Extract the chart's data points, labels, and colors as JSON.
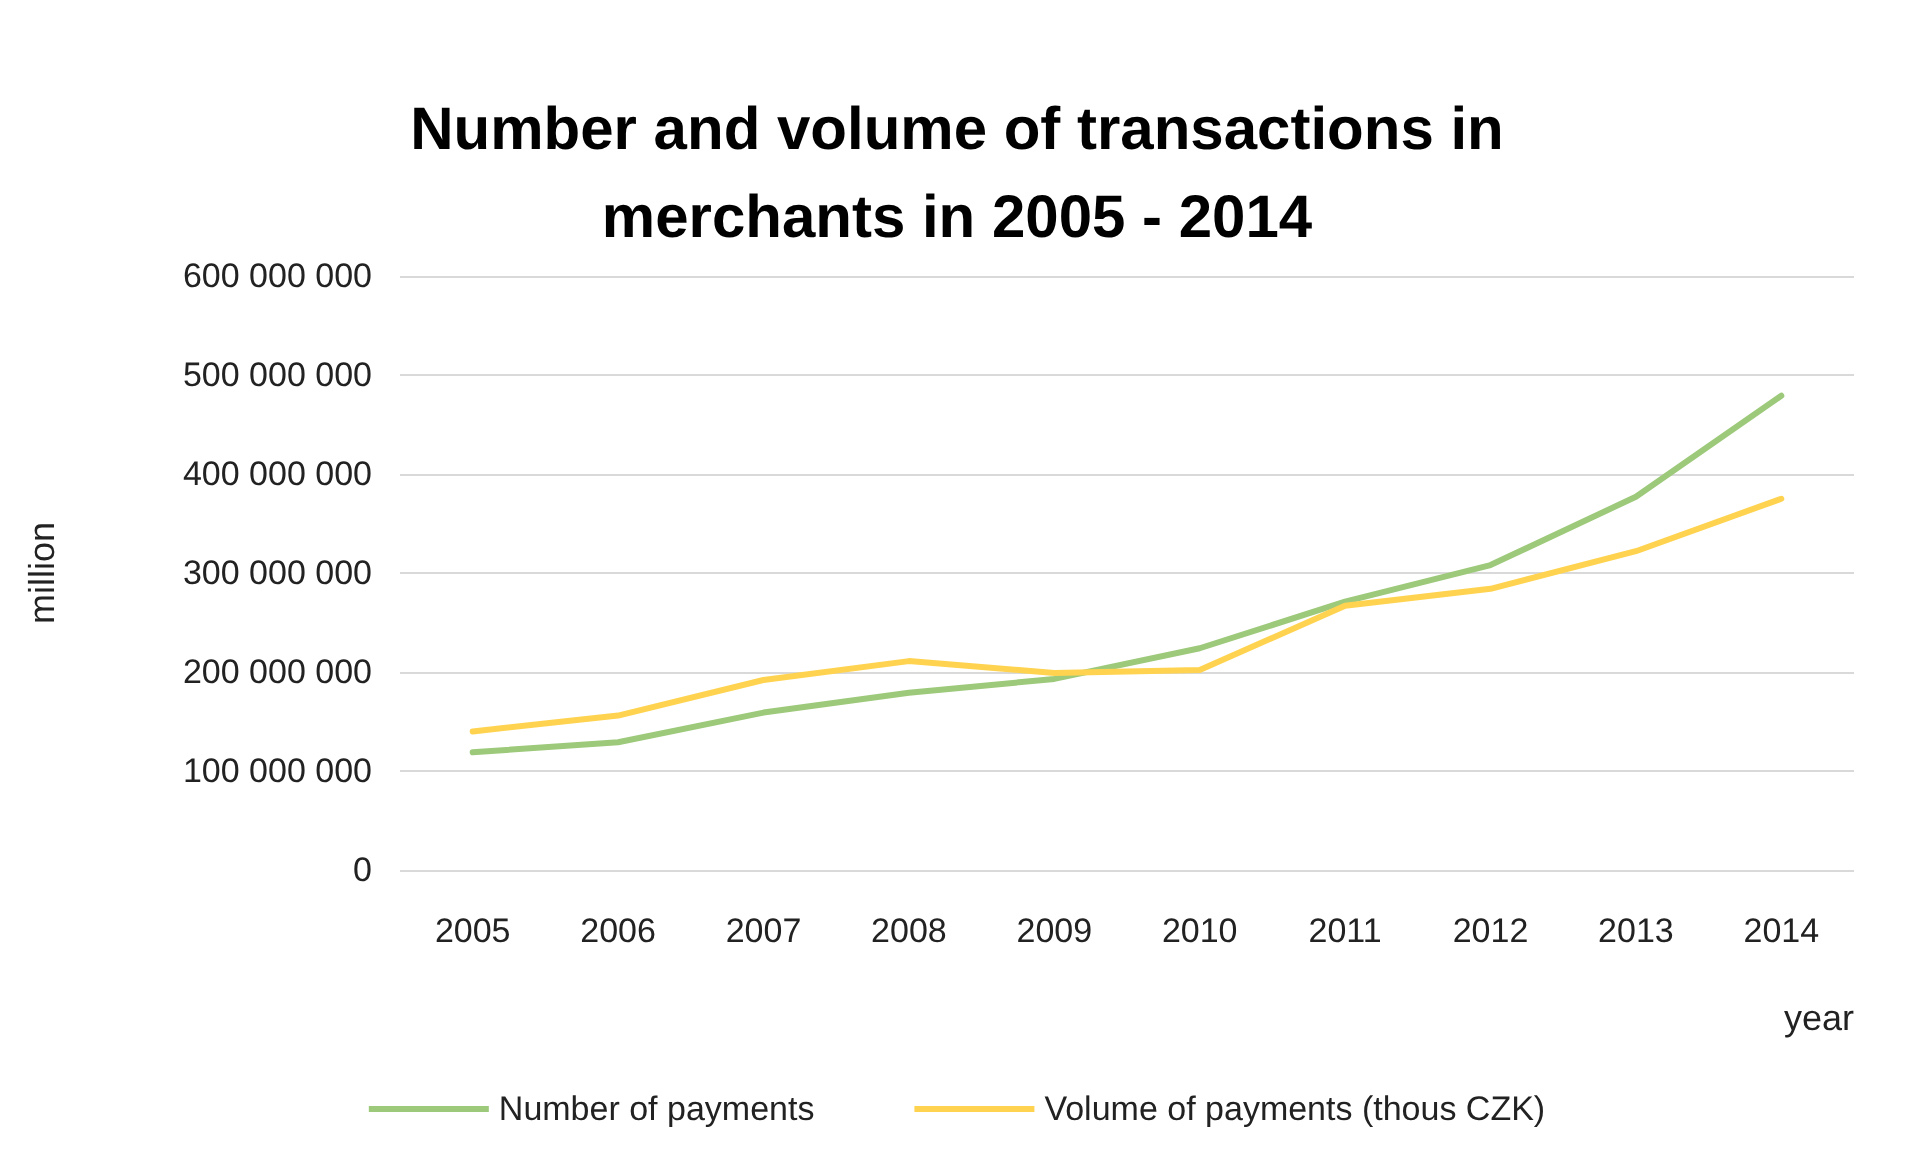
{
  "chart_data": {
    "type": "line",
    "title": "Number and volume of transactions in\nmerchants in 2005 - 2014",
    "xlabel": "year",
    "ylabel": "million",
    "categories": [
      "2005",
      "2006",
      "2007",
      "2008",
      "2009",
      "2010",
      "2011",
      "2012",
      "2013",
      "2014"
    ],
    "series": [
      {
        "name": "Number of payments",
        "color": "#9dc97a",
        "values": [
          119000000,
          129000000,
          159000000,
          179000000,
          193000000,
          224000000,
          271000000,
          308000000,
          377000000,
          479000000
        ]
      },
      {
        "name": "Volume of payments (thous CZK)",
        "color": "#ffd34f",
        "values": [
          140000000,
          156000000,
          192000000,
          211000000,
          199000000,
          202000000,
          267000000,
          284000000,
          322000000,
          375000000
        ]
      }
    ],
    "ylim": [
      0,
      600000000
    ],
    "yticks": [
      {
        "value": 0,
        "label": "0"
      },
      {
        "value": 100000000,
        "label": "100 000 000"
      },
      {
        "value": 200000000,
        "label": "200 000 000"
      },
      {
        "value": 300000000,
        "label": "300 000 000"
      },
      {
        "value": 400000000,
        "label": "400 000 000"
      },
      {
        "value": 500000000,
        "label": "500 000 000"
      },
      {
        "value": 600000000,
        "label": "600 000 000"
      }
    ],
    "grid": "y",
    "legend": "bottom",
    "marker": "none",
    "line_style": "solid"
  }
}
